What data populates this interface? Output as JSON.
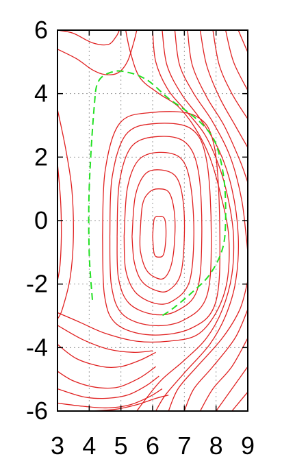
{
  "chart_data": {
    "type": "contour",
    "title": "",
    "xlabel": "",
    "ylabel": "",
    "xlim": [
      3,
      9
    ],
    "ylim": [
      -6,
      6
    ],
    "x_ticks": [
      "3",
      "4",
      "5",
      "6",
      "7",
      "8",
      "9"
    ],
    "y_ticks": [
      "6",
      "4",
      "2",
      "0",
      "-2",
      "-4",
      "-6"
    ],
    "x_tick_values": [
      3,
      4,
      5,
      6,
      7,
      8,
      9
    ],
    "y_tick_values": [
      6,
      4,
      2,
      0,
      -2,
      -4,
      -6
    ],
    "grid": true,
    "contour_color": "#e02020",
    "boundary_color": "#22e022",
    "minimum": {
      "x": 6.2,
      "y": -0.5
    },
    "contours": [
      [
        [
          6.0,
          -0.5
        ],
        [
          6.05,
          0.05
        ],
        [
          6.2,
          0.12
        ],
        [
          6.38,
          0.05
        ],
        [
          6.42,
          -0.5
        ],
        [
          6.35,
          -1.05
        ],
        [
          6.2,
          -1.15
        ],
        [
          6.05,
          -1.05
        ],
        [
          6.0,
          -0.5
        ]
      ],
      [
        [
          5.6,
          -0.5
        ],
        [
          5.68,
          0.5
        ],
        [
          5.9,
          0.9
        ],
        [
          6.2,
          1.0
        ],
        [
          6.52,
          0.88
        ],
        [
          6.68,
          0.3
        ],
        [
          6.7,
          -0.5
        ],
        [
          6.6,
          -1.35
        ],
        [
          6.38,
          -1.8
        ],
        [
          6.1,
          -1.8
        ],
        [
          5.8,
          -1.55
        ],
        [
          5.62,
          -1.0
        ],
        [
          5.6,
          -0.5
        ]
      ],
      [
        [
          5.35,
          -0.5
        ],
        [
          5.45,
          0.75
        ],
        [
          5.75,
          1.45
        ],
        [
          6.2,
          1.6
        ],
        [
          6.72,
          1.4
        ],
        [
          6.95,
          0.7
        ],
        [
          7.0,
          -0.5
        ],
        [
          6.88,
          -1.7
        ],
        [
          6.5,
          -2.2
        ],
        [
          6.1,
          -2.2
        ],
        [
          5.65,
          -1.9
        ],
        [
          5.42,
          -1.3
        ],
        [
          5.35,
          -0.5
        ]
      ],
      [
        [
          5.1,
          -0.5
        ],
        [
          5.2,
          1.0
        ],
        [
          5.55,
          1.9
        ],
        [
          6.2,
          2.15
        ],
        [
          6.9,
          1.95
        ],
        [
          7.2,
          1.1
        ],
        [
          7.3,
          -0.5
        ],
        [
          7.15,
          -1.95
        ],
        [
          6.6,
          -2.55
        ],
        [
          6.05,
          -2.6
        ],
        [
          5.45,
          -2.25
        ],
        [
          5.15,
          -1.55
        ],
        [
          5.1,
          -0.5
        ]
      ],
      [
        [
          4.88,
          -0.5
        ],
        [
          4.95,
          1.2
        ],
        [
          5.35,
          2.35
        ],
        [
          6.2,
          2.65
        ],
        [
          7.05,
          2.45
        ],
        [
          7.45,
          1.5
        ],
        [
          7.55,
          -0.5
        ],
        [
          7.4,
          -2.2
        ],
        [
          6.75,
          -2.85
        ],
        [
          6.0,
          -2.95
        ],
        [
          5.25,
          -2.6
        ],
        [
          4.92,
          -1.8
        ],
        [
          4.88,
          -0.5
        ]
      ],
      [
        [
          4.65,
          -0.5
        ],
        [
          4.72,
          1.35
        ],
        [
          5.15,
          2.7
        ],
        [
          6.0,
          3.05
        ],
        [
          7.2,
          2.9
        ],
        [
          7.7,
          1.9
        ],
        [
          7.85,
          -0.5
        ],
        [
          7.7,
          -2.4
        ],
        [
          6.95,
          -3.15
        ],
        [
          5.95,
          -3.3
        ],
        [
          5.05,
          -2.95
        ],
        [
          4.7,
          -2.05
        ],
        [
          4.65,
          -0.5
        ]
      ],
      [
        [
          4.42,
          -0.5
        ],
        [
          4.5,
          1.55
        ],
        [
          4.95,
          3.05
        ],
        [
          5.9,
          3.4
        ],
        [
          7.35,
          3.3
        ],
        [
          7.95,
          2.3
        ],
        [
          8.12,
          -0.5
        ],
        [
          7.98,
          -2.6
        ],
        [
          7.2,
          -3.4
        ],
        [
          5.9,
          -3.6
        ],
        [
          4.85,
          -3.25
        ],
        [
          4.48,
          -2.35
        ],
        [
          4.42,
          -0.5
        ]
      ],
      [
        [
          5.15,
          6.0
        ],
        [
          5.3,
          5.3
        ],
        [
          5.6,
          4.5
        ],
        [
          6.2,
          4.0
        ],
        [
          6.8,
          3.6
        ],
        [
          7.35,
          2.9
        ],
        [
          7.8,
          2.0
        ],
        [
          8.15,
          0.8
        ],
        [
          8.4,
          -0.5
        ],
        [
          8.35,
          -1.9
        ],
        [
          8.0,
          -2.9
        ],
        [
          7.4,
          -3.6
        ],
        [
          6.5,
          -3.8
        ],
        [
          5.5,
          -3.8
        ],
        [
          4.5,
          -3.55
        ],
        [
          3.7,
          -3.2
        ],
        [
          3.0,
          -2.9
        ]
      ],
      [
        [
          3.0,
          -3.3
        ],
        [
          3.8,
          -3.75
        ],
        [
          4.6,
          -4.05
        ],
        [
          5.4,
          -4.15
        ],
        [
          6.0,
          -4.1
        ]
      ],
      [
        [
          3.0,
          -3.9
        ],
        [
          3.6,
          -4.35
        ],
        [
          4.4,
          -4.6
        ],
        [
          5.0,
          -4.6
        ],
        [
          5.6,
          -4.4
        ],
        [
          6.1,
          -4.15
        ]
      ],
      [
        [
          3.0,
          -4.75
        ],
        [
          3.5,
          -5.05
        ],
        [
          4.2,
          -5.25
        ],
        [
          4.9,
          -5.25
        ],
        [
          5.6,
          -4.95
        ],
        [
          6.1,
          -4.6
        ]
      ],
      [
        [
          3.0,
          -5.3
        ],
        [
          3.8,
          -5.55
        ],
        [
          4.5,
          -5.6
        ],
        [
          5.2,
          -5.5
        ],
        [
          5.8,
          -5.2
        ],
        [
          6.2,
          -4.9
        ]
      ],
      [
        [
          3.0,
          -5.75
        ],
        [
          3.8,
          -5.85
        ],
        [
          4.6,
          -5.9
        ],
        [
          5.3,
          -5.8
        ],
        [
          5.9,
          -5.55
        ],
        [
          6.3,
          -5.3
        ]
      ],
      [
        [
          4.0,
          -6.0
        ],
        [
          4.8,
          -5.95
        ],
        [
          5.5,
          -5.8
        ],
        [
          6.1,
          -5.6
        ],
        [
          6.5,
          -5.5
        ]
      ],
      [
        [
          6.0,
          6.0
        ],
        [
          6.1,
          5.0
        ],
        [
          6.5,
          4.1
        ],
        [
          7.1,
          3.4
        ],
        [
          7.65,
          2.7
        ],
        [
          8.1,
          1.7
        ],
        [
          8.4,
          0.6
        ],
        [
          8.55,
          -0.5
        ],
        [
          8.5,
          -1.7
        ],
        [
          8.2,
          -2.8
        ],
        [
          7.7,
          -3.7
        ],
        [
          7.0,
          -4.4
        ],
        [
          6.3,
          -5.0
        ],
        [
          5.8,
          -5.6
        ],
        [
          5.5,
          -6.0
        ]
      ],
      [
        [
          6.3,
          6.0
        ],
        [
          6.45,
          4.9
        ],
        [
          6.9,
          4.0
        ],
        [
          7.5,
          3.2
        ],
        [
          8.1,
          2.2
        ],
        [
          8.5,
          1.0
        ],
        [
          8.7,
          -0.5
        ],
        [
          8.62,
          -1.9
        ],
        [
          8.3,
          -3.0
        ],
        [
          7.8,
          -3.9
        ],
        [
          7.0,
          -4.8
        ],
        [
          6.4,
          -5.5
        ],
        [
          6.1,
          -6.0
        ]
      ],
      [
        [
          6.7,
          6.0
        ],
        [
          6.85,
          4.9
        ],
        [
          7.3,
          4.0
        ],
        [
          7.9,
          3.1
        ],
        [
          8.45,
          2.0
        ],
        [
          8.8,
          0.7
        ],
        [
          8.95,
          -0.5
        ],
        [
          9.0,
          -1.0
        ]
      ],
      [
        [
          7.1,
          6.0
        ],
        [
          7.25,
          4.9
        ],
        [
          7.7,
          3.9
        ],
        [
          8.25,
          3.0
        ],
        [
          8.75,
          1.9
        ],
        [
          9.0,
          1.2
        ]
      ],
      [
        [
          7.5,
          6.0
        ],
        [
          7.7,
          4.9
        ],
        [
          8.1,
          3.9
        ],
        [
          8.6,
          3.0
        ],
        [
          9.0,
          2.3
        ]
      ],
      [
        [
          7.9,
          6.0
        ],
        [
          8.1,
          4.9
        ],
        [
          8.5,
          4.0
        ],
        [
          9.0,
          3.2
        ]
      ],
      [
        [
          8.3,
          6.0
        ],
        [
          8.55,
          5.0
        ],
        [
          9.0,
          4.1
        ]
      ],
      [
        [
          8.7,
          6.0
        ],
        [
          9.0,
          5.3
        ]
      ],
      [
        [
          9.0,
          -1.9
        ],
        [
          8.75,
          -2.8
        ],
        [
          8.2,
          -3.7
        ],
        [
          7.4,
          -4.6
        ],
        [
          6.8,
          -5.3
        ],
        [
          6.5,
          -6.0
        ]
      ],
      [
        [
          9.0,
          -2.8
        ],
        [
          8.6,
          -3.7
        ],
        [
          7.9,
          -4.6
        ],
        [
          7.3,
          -5.3
        ],
        [
          7.0,
          -6.0
        ]
      ],
      [
        [
          9.0,
          -3.7
        ],
        [
          8.5,
          -4.6
        ],
        [
          7.9,
          -5.3
        ],
        [
          7.5,
          -6.0
        ]
      ],
      [
        [
          9.0,
          -4.6
        ],
        [
          8.5,
          -5.3
        ],
        [
          8.0,
          -6.0
        ]
      ],
      [
        [
          9.0,
          -5.4
        ],
        [
          8.5,
          -6.0
        ]
      ],
      [
        [
          3.0,
          3.5
        ],
        [
          3.25,
          2.3
        ],
        [
          3.45,
          1.0
        ],
        [
          3.5,
          -0.5
        ],
        [
          3.4,
          -1.8
        ],
        [
          3.15,
          -2.8
        ],
        [
          3.0,
          -3.1
        ]
      ],
      [
        [
          3.0,
          1.8
        ],
        [
          3.1,
          0.6
        ],
        [
          3.12,
          -0.5
        ],
        [
          3.08,
          -1.4
        ],
        [
          3.0,
          -1.9
        ]
      ],
      [
        [
          3.0,
          5.4
        ],
        [
          3.6,
          5.1
        ],
        [
          4.1,
          4.75
        ],
        [
          4.5,
          4.6
        ],
        [
          4.9,
          4.65
        ],
        [
          5.2,
          5.0
        ],
        [
          5.4,
          5.6
        ],
        [
          5.5,
          6.0
        ]
      ],
      [
        [
          3.0,
          6.0
        ],
        [
          3.5,
          5.9
        ],
        [
          4.1,
          5.6
        ],
        [
          4.6,
          5.55
        ],
        [
          4.85,
          5.8
        ],
        [
          4.95,
          6.0
        ]
      ]
    ],
    "boundary": [
      [
        4.1,
        -2.5
      ],
      [
        4.0,
        -1.0
      ],
      [
        4.0,
        1.0
      ],
      [
        4.15,
        3.5
      ],
      [
        4.3,
        4.4
      ],
      [
        4.8,
        4.7
      ],
      [
        5.3,
        4.65
      ],
      [
        5.7,
        4.5
      ],
      [
        6.0,
        4.3
      ],
      [
        6.5,
        3.85
      ],
      [
        7.0,
        3.5
      ],
      [
        7.6,
        3.0
      ],
      [
        8.0,
        2.4
      ],
      [
        8.25,
        1.3
      ],
      [
        8.3,
        0.0
      ],
      [
        8.2,
        -0.9
      ],
      [
        7.8,
        -1.7
      ],
      [
        7.2,
        -2.3
      ],
      [
        6.6,
        -2.8
      ],
      [
        6.2,
        -3.05
      ]
    ]
  }
}
